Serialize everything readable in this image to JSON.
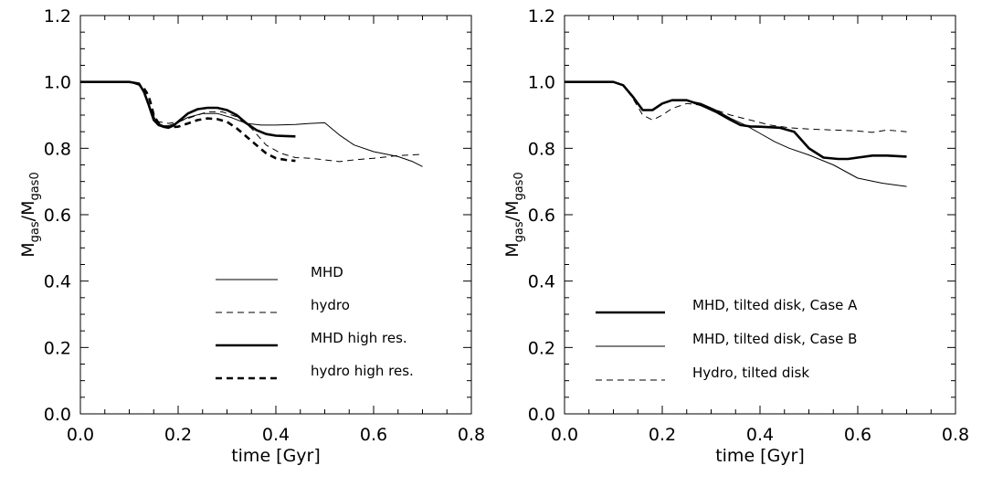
{
  "chart_data": [
    {
      "type": "line",
      "xlabel": "time [Gyr]",
      "ylabel": "M_gas/M_gas0",
      "ylabel_main": "M",
      "ylabel_sub1": "gas",
      "ylabel_slash": "/M",
      "ylabel_sub2": "gas0",
      "xlim": [
        0.0,
        0.8
      ],
      "ylim": [
        0.0,
        1.2
      ],
      "xticks": [
        "0.0",
        "0.2",
        "0.4",
        "0.6",
        "0.8"
      ],
      "yticks": [
        "0.0",
        "0.2",
        "0.4",
        "0.6",
        "0.8",
        "1.0",
        "1.2"
      ],
      "grid": false,
      "legend_position": "bottom-center",
      "series": [
        {
          "name": "MHD",
          "style": "thin-solid",
          "x": [
            0.0,
            0.05,
            0.1,
            0.12,
            0.13,
            0.14,
            0.15,
            0.16,
            0.17,
            0.18,
            0.2,
            0.22,
            0.25,
            0.28,
            0.31,
            0.34,
            0.37,
            0.4,
            0.44,
            0.47,
            0.5,
            0.53,
            0.56,
            0.6,
            0.65,
            0.68,
            0.7
          ],
          "y": [
            1.0,
            1.0,
            1.0,
            0.99,
            0.97,
            0.93,
            0.895,
            0.875,
            0.868,
            0.868,
            0.878,
            0.893,
            0.905,
            0.905,
            0.892,
            0.875,
            0.87,
            0.87,
            0.872,
            0.875,
            0.877,
            0.84,
            0.81,
            0.79,
            0.775,
            0.76,
            0.745
          ]
        },
        {
          "name": "hydro",
          "style": "thin-dashed",
          "x": [
            0.0,
            0.05,
            0.1,
            0.12,
            0.13,
            0.14,
            0.15,
            0.16,
            0.18,
            0.2,
            0.23,
            0.26,
            0.29,
            0.32,
            0.35,
            0.38,
            0.41,
            0.44,
            0.47,
            0.5,
            0.53,
            0.56,
            0.6,
            0.65,
            0.7
          ],
          "y": [
            1.0,
            1.0,
            1.0,
            0.99,
            0.97,
            0.93,
            0.9,
            0.88,
            0.875,
            0.88,
            0.895,
            0.91,
            0.91,
            0.895,
            0.86,
            0.81,
            0.785,
            0.772,
            0.77,
            0.765,
            0.76,
            0.765,
            0.77,
            0.778,
            0.782
          ]
        },
        {
          "name": "MHD high res.",
          "style": "thick-solid",
          "x": [
            0.0,
            0.05,
            0.1,
            0.12,
            0.13,
            0.14,
            0.15,
            0.16,
            0.17,
            0.18,
            0.19,
            0.2,
            0.22,
            0.24,
            0.26,
            0.28,
            0.3,
            0.32,
            0.34,
            0.36,
            0.38,
            0.4,
            0.42,
            0.44
          ],
          "y": [
            1.0,
            1.0,
            1.0,
            0.995,
            0.97,
            0.93,
            0.885,
            0.87,
            0.865,
            0.862,
            0.868,
            0.88,
            0.905,
            0.918,
            0.922,
            0.922,
            0.915,
            0.9,
            0.875,
            0.855,
            0.843,
            0.838,
            0.837,
            0.836
          ]
        },
        {
          "name": "hydro high res.",
          "style": "thick-dashed",
          "x": [
            0.13,
            0.135,
            0.14,
            0.145,
            0.15,
            0.16,
            0.17,
            0.18,
            0.2,
            0.22,
            0.24,
            0.26,
            0.28,
            0.3,
            0.32,
            0.34,
            0.36,
            0.38,
            0.4,
            0.42,
            0.44
          ],
          "y": [
            0.98,
            0.97,
            0.955,
            0.93,
            0.9,
            0.875,
            0.865,
            0.863,
            0.865,
            0.875,
            0.885,
            0.89,
            0.888,
            0.88,
            0.86,
            0.835,
            0.81,
            0.785,
            0.77,
            0.765,
            0.762
          ]
        }
      ]
    },
    {
      "type": "line",
      "xlabel": "time [Gyr]",
      "ylabel": "M_gas/M_gas0",
      "ylabel_main": "M",
      "ylabel_sub1": "gas",
      "ylabel_slash": "/M",
      "ylabel_sub2": "gas0",
      "xlim": [
        0.0,
        0.8
      ],
      "ylim": [
        0.0,
        1.2
      ],
      "xticks": [
        "0.0",
        "0.2",
        "0.4",
        "0.6",
        "0.8"
      ],
      "yticks": [
        "0.0",
        "0.2",
        "0.4",
        "0.6",
        "0.8",
        "1.0",
        "1.2"
      ],
      "grid": false,
      "legend_position": "bottom-center",
      "series": [
        {
          "name": "MHD, tilted disk, Case A",
          "style": "thick-solid",
          "x": [
            0.0,
            0.05,
            0.1,
            0.12,
            0.14,
            0.16,
            0.18,
            0.2,
            0.22,
            0.25,
            0.28,
            0.31,
            0.34,
            0.36,
            0.38,
            0.4,
            0.44,
            0.47,
            0.5,
            0.53,
            0.56,
            0.58,
            0.6,
            0.63,
            0.66,
            0.7
          ],
          "y": [
            1.0,
            1.0,
            1.0,
            0.99,
            0.955,
            0.915,
            0.915,
            0.935,
            0.945,
            0.945,
            0.93,
            0.91,
            0.885,
            0.87,
            0.866,
            0.865,
            0.862,
            0.85,
            0.8,
            0.772,
            0.768,
            0.768,
            0.772,
            0.778,
            0.778,
            0.775
          ]
        },
        {
          "name": "MHD, tilted disk, Case B",
          "style": "thin-solid",
          "x": [
            0.0,
            0.05,
            0.1,
            0.12,
            0.14,
            0.16,
            0.18,
            0.2,
            0.22,
            0.25,
            0.28,
            0.31,
            0.34,
            0.37,
            0.4,
            0.43,
            0.46,
            0.5,
            0.55,
            0.6,
            0.65,
            0.7
          ],
          "y": [
            1.0,
            1.0,
            1.0,
            0.99,
            0.955,
            0.915,
            0.915,
            0.935,
            0.945,
            0.945,
            0.935,
            0.915,
            0.89,
            0.87,
            0.845,
            0.82,
            0.8,
            0.78,
            0.75,
            0.71,
            0.695,
            0.685
          ]
        },
        {
          "name": "Hydro, tilted disk",
          "style": "thin-dashed",
          "x": [
            0.0,
            0.05,
            0.1,
            0.12,
            0.14,
            0.16,
            0.18,
            0.2,
            0.22,
            0.25,
            0.28,
            0.31,
            0.34,
            0.38,
            0.42,
            0.46,
            0.5,
            0.55,
            0.6,
            0.63,
            0.66,
            0.7
          ],
          "y": [
            1.0,
            1.0,
            1.0,
            0.99,
            0.95,
            0.9,
            0.885,
            0.9,
            0.92,
            0.935,
            0.93,
            0.915,
            0.9,
            0.885,
            0.87,
            0.862,
            0.858,
            0.855,
            0.852,
            0.848,
            0.855,
            0.85
          ]
        }
      ]
    }
  ]
}
